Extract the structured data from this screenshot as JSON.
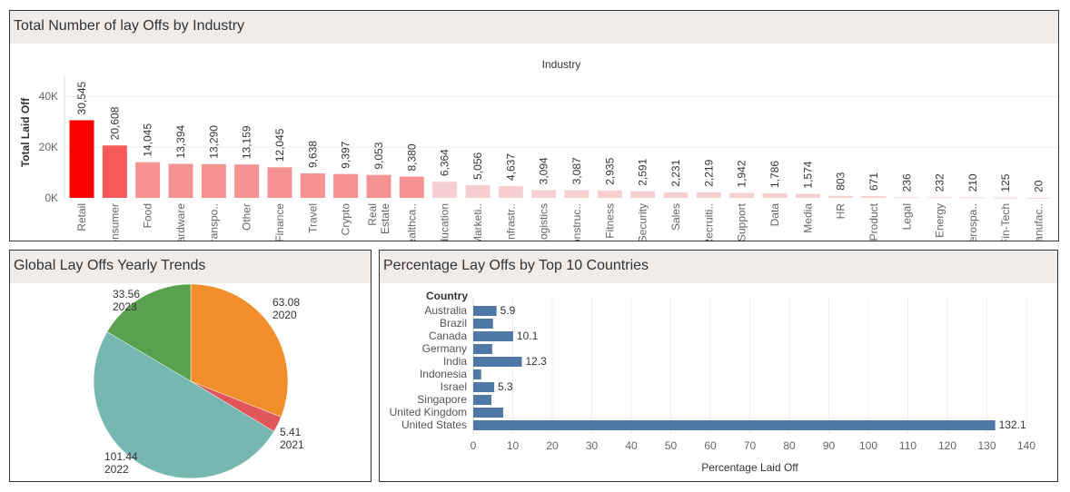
{
  "industry_panel": {
    "title": "Total Number of lay Offs by Industry"
  },
  "pie_panel": {
    "title": "Global Lay Offs Yearly Trends"
  },
  "country_panel": {
    "title": "Percentage Lay Offs by Top 10 Countries"
  },
  "colors": {
    "industry_max": "#ff0000",
    "industry_high": "#f65a5a",
    "industry_mid": "#f59393",
    "industry_low": "#f7cfd1",
    "pie_2020": "#f28e2b",
    "pie_2021": "#e15759",
    "pie_2022": "#76b7b2",
    "pie_2023": "#59a14f",
    "country_bar": "#4e79a7"
  },
  "chart_data": [
    {
      "type": "bar",
      "title": "Total Number of lay Offs by Industry",
      "xlabel": "Industry",
      "ylabel": "Total Laid Off",
      "ylim": [
        0,
        50000
      ],
      "yticks": [
        "0K",
        "20K",
        "40K"
      ],
      "categories": [
        "Retail",
        "Consumer",
        "Food",
        "Hardware",
        "Transpo..",
        "Other",
        "Finance",
        "Travel",
        "Crypto",
        "Real Estate",
        "Healthca..",
        "Education",
        "Marketi..",
        "Infrastr..",
        "Logistics",
        "Construc..",
        "Fitness",
        "Security",
        "Sales",
        "Recruiti..",
        "Support",
        "Data",
        "Media",
        "HR",
        "Product",
        "Legal",
        "Energy",
        "Aerospa..",
        "Fin-Tech",
        "Manufac.."
      ],
      "values": [
        30545,
        20608,
        14045,
        13394,
        13290,
        13159,
        12045,
        9638,
        9397,
        9053,
        8380,
        6364,
        5056,
        4637,
        3094,
        3087,
        2935,
        2591,
        2231,
        2219,
        1942,
        1786,
        1574,
        803,
        671,
        236,
        232,
        210,
        125,
        20
      ],
      "data_labels": [
        "30,545",
        "20,608",
        "14,045",
        "13,394",
        "13,290",
        "13,159",
        "12,045",
        "9,638",
        "9,397",
        "9,053",
        "8,380",
        "6,364",
        "5,056",
        "4,637",
        "3,094",
        "3,087",
        "2,935",
        "2,591",
        "2,231",
        "2,219",
        "1,942",
        "1,786",
        "1,574",
        "803",
        "671",
        "236",
        "232",
        "210",
        "125",
        "20"
      ],
      "grid": true
    },
    {
      "type": "pie",
      "title": "Global Lay Offs Yearly Trends",
      "categories": [
        "2020",
        "2021",
        "2022",
        "2023"
      ],
      "values": [
        63.08,
        5.41,
        101.44,
        33.56
      ],
      "data_labels": [
        "63.08",
        "5.41",
        "101.44",
        "33.56"
      ]
    },
    {
      "type": "bar",
      "orientation": "horizontal",
      "title": "Percentage Lay Offs by Top 10 Countries",
      "category_header": "Country",
      "xlabel": "Percentage Laid Off",
      "xlim": [
        0,
        140
      ],
      "xticks": [
        "0",
        "10",
        "20",
        "30",
        "40",
        "50",
        "60",
        "70",
        "80",
        "90",
        "100",
        "110",
        "120",
        "130",
        "140"
      ],
      "categories": [
        "Australia",
        "Brazil",
        "Canada",
        "Germany",
        "India",
        "Indonesia",
        "Israel",
        "Singapore",
        "United Kingdom",
        "United States"
      ],
      "values": [
        5.9,
        5.0,
        10.1,
        4.8,
        12.3,
        2.0,
        5.3,
        4.6,
        7.6,
        132.1
      ],
      "data_labels": [
        "5.9",
        "",
        "10.1",
        "",
        "12.3",
        "",
        "5.3",
        "",
        "",
        "132.1"
      ],
      "grid": true
    }
  ]
}
